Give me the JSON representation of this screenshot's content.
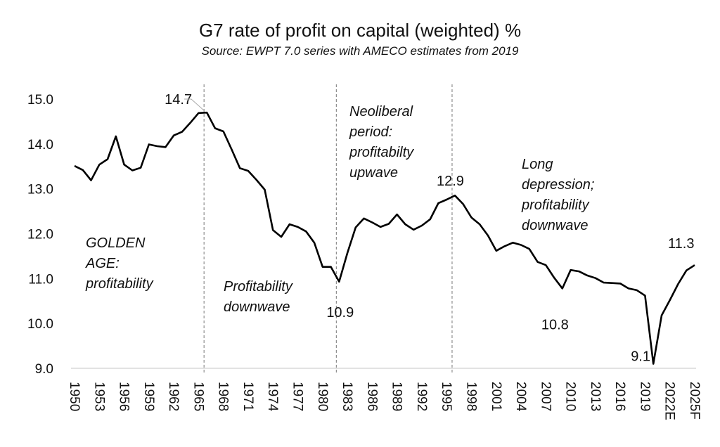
{
  "chart_data": {
    "type": "line",
    "title": "G7 rate of profit on capital (weighted) %",
    "subtitle": "Source: EWPT 7.0 series with AMECO estimates from 2019",
    "xlabel": "",
    "ylabel": "",
    "ylim": [
      9.0,
      15.0
    ],
    "yticks": [
      "15.0",
      "14.0",
      "13.0",
      "12.0",
      "11.0",
      "10.0",
      "9.0"
    ],
    "grid": false,
    "x": [
      "1950",
      "1951",
      "1952",
      "1953",
      "1954",
      "1955",
      "1956",
      "1957",
      "1958",
      "1959",
      "1960",
      "1961",
      "1962",
      "1963",
      "1964",
      "1965",
      "1966",
      "1967",
      "1968",
      "1969",
      "1970",
      "1971",
      "1972",
      "1973",
      "1974",
      "1975",
      "1976",
      "1977",
      "1978",
      "1979",
      "1980",
      "1981",
      "1982",
      "1983",
      "1984",
      "1985",
      "1986",
      "1987",
      "1988",
      "1989",
      "1990",
      "1991",
      "1992",
      "1993",
      "1994",
      "1995",
      "1996",
      "1997",
      "1998",
      "1999",
      "2000",
      "2001",
      "2002",
      "2003",
      "2004",
      "2005",
      "2006",
      "2007",
      "2008",
      "2009",
      "2010",
      "2011",
      "2012",
      "2013",
      "2014",
      "2015",
      "2016",
      "2017",
      "2018",
      "2019",
      "2020",
      "2021",
      "2022E",
      "2023",
      "2024",
      "2025F"
    ],
    "xticks": [
      "1950",
      "1953",
      "1956",
      "1959",
      "1962",
      "1965",
      "1968",
      "1971",
      "1974",
      "1977",
      "1980",
      "1983",
      "1986",
      "1989",
      "1992",
      "1995",
      "1998",
      "2001",
      "2004",
      "2007",
      "2010",
      "2013",
      "2016",
      "2019",
      "2022E",
      "2025F"
    ],
    "series": [
      {
        "values": [
          13.51,
          13.42,
          13.19,
          13.54,
          13.66,
          14.17,
          13.54,
          13.41,
          13.47,
          13.99,
          13.95,
          13.93,
          14.19,
          14.27,
          14.47,
          14.69,
          14.7,
          14.35,
          14.28,
          13.88,
          13.46,
          13.4,
          13.2,
          12.98,
          12.08,
          11.93,
          12.21,
          12.15,
          12.05,
          11.8,
          11.26,
          11.26,
          10.93,
          11.57,
          12.14,
          12.34,
          12.25,
          12.15,
          12.22,
          12.43,
          12.21,
          12.09,
          12.18,
          12.32,
          12.68,
          12.76,
          12.85,
          12.66,
          12.36,
          12.21,
          11.96,
          11.62,
          11.72,
          11.8,
          11.75,
          11.66,
          11.37,
          11.3,
          11.02,
          10.78,
          11.19,
          11.16,
          11.07,
          11.01,
          10.91,
          10.9,
          10.89,
          10.78,
          10.74,
          10.62,
          9.1,
          10.18,
          10.52,
          10.88,
          11.18,
          11.3
        ],
        "color": "#000000"
      }
    ],
    "dividers": [
      "1966",
      "1982",
      "1996"
    ],
    "data_labels": [
      {
        "x": "1966",
        "text": "14.7"
      },
      {
        "x": "1982",
        "text": "10.9"
      },
      {
        "x": "1996",
        "text": "12.9"
      },
      {
        "x": "2009",
        "text": "10.8"
      },
      {
        "x": "2020",
        "text": "9.1"
      },
      {
        "x": "2025F",
        "text": "11.3"
      }
    ],
    "annotations": [
      {
        "lines": [
          "GOLDEN",
          "AGE:",
          "profitability"
        ]
      },
      {
        "lines": [
          "Profitability",
          "downwave"
        ]
      },
      {
        "lines": [
          "Neoliberal",
          "period:",
          "profitabilty",
          "upwave"
        ]
      },
      {
        "lines": [
          "Long",
          "depression;",
          "profitability",
          "downwave"
        ]
      }
    ]
  }
}
